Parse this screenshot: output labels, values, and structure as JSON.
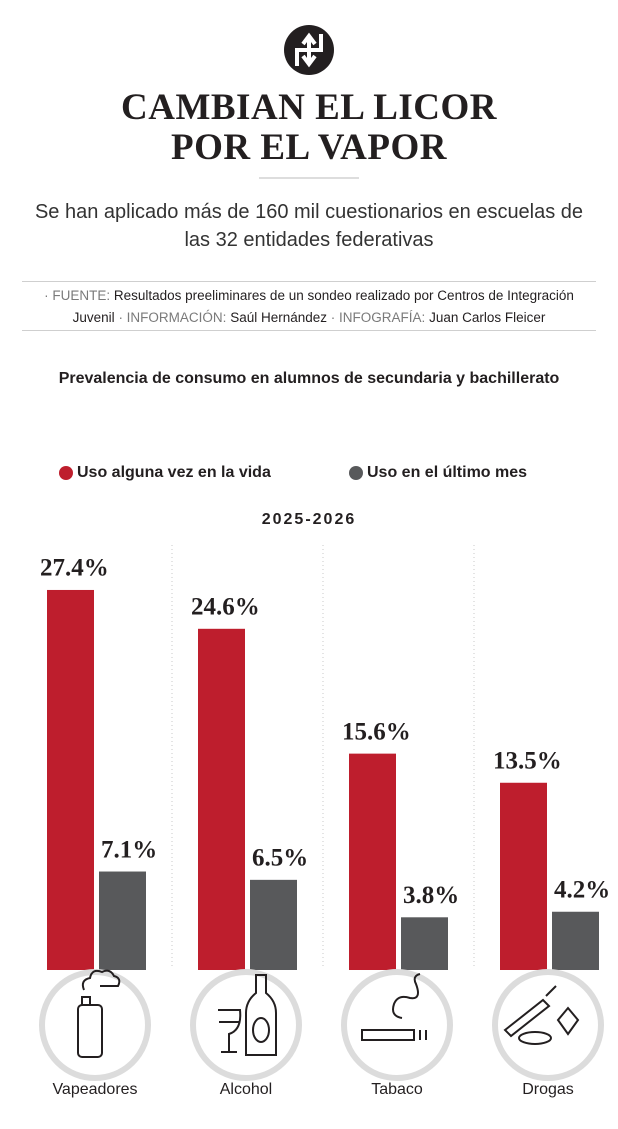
{
  "header": {
    "title_lines": [
      "CAMBIAN EL LICOR",
      "POR EL VAPOR"
    ],
    "subtitle": "Se han aplicado más de 160 mil cuestionarios en escuelas de las 32 entidades federativas",
    "credits": [
      {
        "label": "· FUENTE:",
        "text": "Resultados preeliminares de un sondeo realizado por Centros de Integración Juvenil"
      },
      {
        "label": "· INFORMACIÓN:",
        "text": "Saúl Hernández"
      },
      {
        "label": "· INFOGRAFÍA:",
        "text": "Juan Carlos Fleicer"
      }
    ]
  },
  "chart_data": {
    "type": "bar",
    "title": "Prevalencia de consumo en alumnos de secundaria y bachillerato",
    "period": "2025-2026",
    "categories": [
      "Vapeadores",
      "Alcohol",
      "Tabaco",
      "Drogas"
    ],
    "series": [
      {
        "name": "Uso alguna vez en la vida",
        "color": "#be1e2d",
        "values": [
          27.4,
          24.6,
          15.6,
          13.5
        ],
        "value_labels": [
          "27.4%",
          "24.6%",
          "15.6%",
          "13.5%"
        ]
      },
      {
        "name": "Uso en el último mes",
        "color": "#58595b",
        "values": [
          7.1,
          6.5,
          3.8,
          4.2
        ],
        "value_labels": [
          "7.1%",
          "6.5%",
          "3.8%",
          "4.2%"
        ]
      }
    ]
  }
}
